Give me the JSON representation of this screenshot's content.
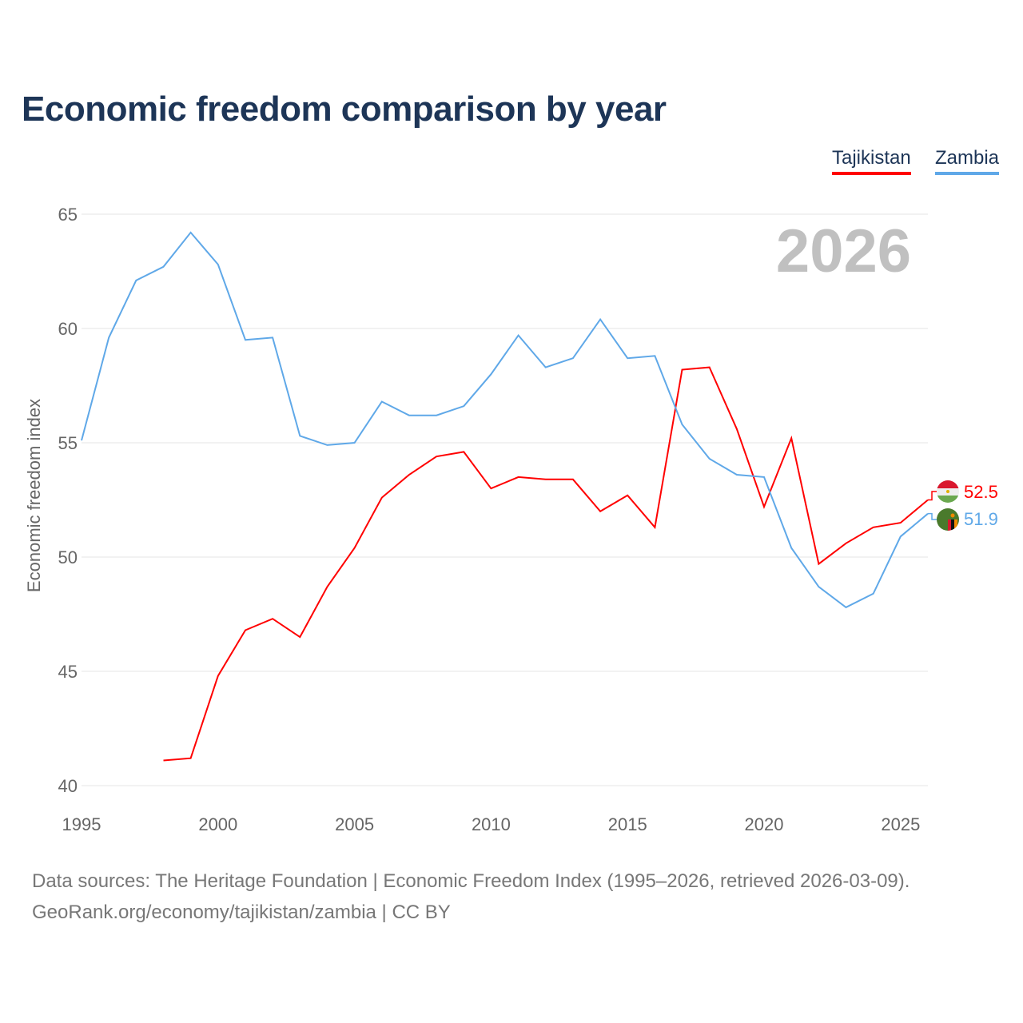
{
  "title": "Economic freedom comparison by year",
  "year_watermark": "2026",
  "footer": {
    "line1": "Data sources: The Heritage Foundation | Economic Freedom Index (1995–2026, retrieved 2026-03-09).",
    "line2": "GeoRank.org/economy/tajikistan/zambia | CC BY"
  },
  "chart_data": {
    "type": "line",
    "title": "Economic freedom comparison by year",
    "xlabel": "",
    "ylabel": "Economic freedom index",
    "xlim": [
      1995,
      2026
    ],
    "ylim": [
      40,
      65
    ],
    "xticks": [
      "1995",
      "2000",
      "2005",
      "2010",
      "2015",
      "2020",
      "2025"
    ],
    "yticks": [
      "40",
      "45",
      "50",
      "55",
      "60",
      "65"
    ],
    "grid": true,
    "legend_position": "top-right",
    "series": [
      {
        "name": "Tajikistan",
        "color": "#ff0000",
        "end_label": "52.5",
        "x": [
          1998,
          1999,
          2000,
          2001,
          2002,
          2003,
          2004,
          2005,
          2006,
          2007,
          2008,
          2009,
          2010,
          2011,
          2012,
          2013,
          2014,
          2015,
          2016,
          2017,
          2018,
          2019,
          2020,
          2021,
          2022,
          2023,
          2024,
          2025,
          2026
        ],
        "values": [
          41.1,
          41.2,
          44.8,
          46.8,
          47.3,
          46.5,
          48.7,
          50.4,
          52.6,
          53.6,
          54.4,
          54.6,
          53.0,
          53.5,
          53.4,
          53.4,
          52.0,
          52.7,
          51.3,
          58.2,
          58.3,
          55.6,
          52.2,
          55.2,
          49.7,
          50.6,
          51.3,
          51.5,
          52.5
        ]
      },
      {
        "name": "Zambia",
        "color": "#5fa8e8",
        "end_label": "51.9",
        "x": [
          1995,
          1996,
          1997,
          1998,
          1999,
          2000,
          2001,
          2002,
          2003,
          2004,
          2005,
          2006,
          2007,
          2008,
          2009,
          2010,
          2011,
          2012,
          2013,
          2014,
          2015,
          2016,
          2017,
          2018,
          2019,
          2020,
          2021,
          2022,
          2023,
          2024,
          2025,
          2026
        ],
        "values": [
          55.1,
          59.6,
          62.1,
          62.7,
          64.2,
          62.8,
          59.5,
          59.6,
          55.3,
          54.9,
          55.0,
          56.8,
          56.2,
          56.2,
          56.6,
          58.0,
          59.7,
          58.3,
          58.7,
          60.4,
          58.7,
          58.8,
          55.8,
          54.3,
          53.6,
          53.5,
          50.4,
          48.7,
          47.8,
          48.4,
          50.9,
          51.9
        ]
      }
    ]
  }
}
